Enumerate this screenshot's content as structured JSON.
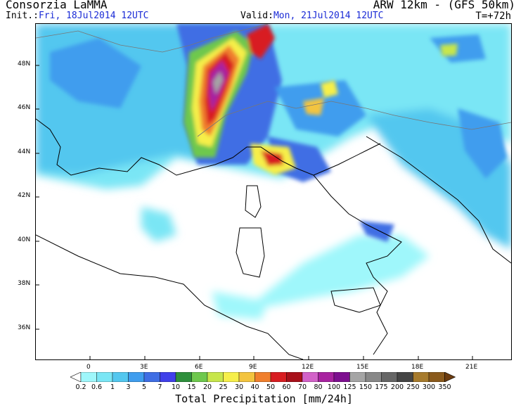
{
  "header": {
    "source": "Consorzia LaMMA",
    "model": "ARW 12km - (GFS 50km)",
    "init_label": "Init.:",
    "init_value": "Fri, 18Jul2014 12UTC",
    "valid_label": "Valid:",
    "valid_value": "Mon, 21Jul2014 12UTC",
    "timestep": "T=+72h"
  },
  "map": {
    "lat_labels": [
      "48N",
      "46N",
      "44N",
      "42N",
      "40N",
      "38N",
      "36N"
    ],
    "lon_labels": [
      "0",
      "3E",
      "6E",
      "9E",
      "12E",
      "15E",
      "18E",
      "21E"
    ],
    "regions": [
      "France",
      "Italy",
      "Corsica",
      "Sardinia",
      "Sicily",
      "Balkans",
      "Spain",
      "North Africa"
    ]
  },
  "colorbar": {
    "title": "Total Precipitation [mm/24h]",
    "levels": [
      "0.2",
      "0.6",
      "1",
      "3",
      "5",
      "7",
      "10",
      "15",
      "20",
      "25",
      "30",
      "40",
      "50",
      "60",
      "70",
      "80",
      "100",
      "125",
      "150",
      "175",
      "200",
      "250",
      "300",
      "350"
    ],
    "colors": [
      "#9ff7fb",
      "#7ae6f5",
      "#53c7ef",
      "#3f9dee",
      "#3f6ee4",
      "#4040ea",
      "#2e8f3c",
      "#6ec84d",
      "#c7e64b",
      "#f6ef4a",
      "#f3c43f",
      "#f07f2d",
      "#d81d21",
      "#a8101a",
      "#d262c8",
      "#a822a0",
      "#7d0f8f",
      "#a5a5a5",
      "#888888",
      "#666666",
      "#454545",
      "#a77b2d",
      "#8a5a1c",
      "#6c3c10"
    ]
  }
}
